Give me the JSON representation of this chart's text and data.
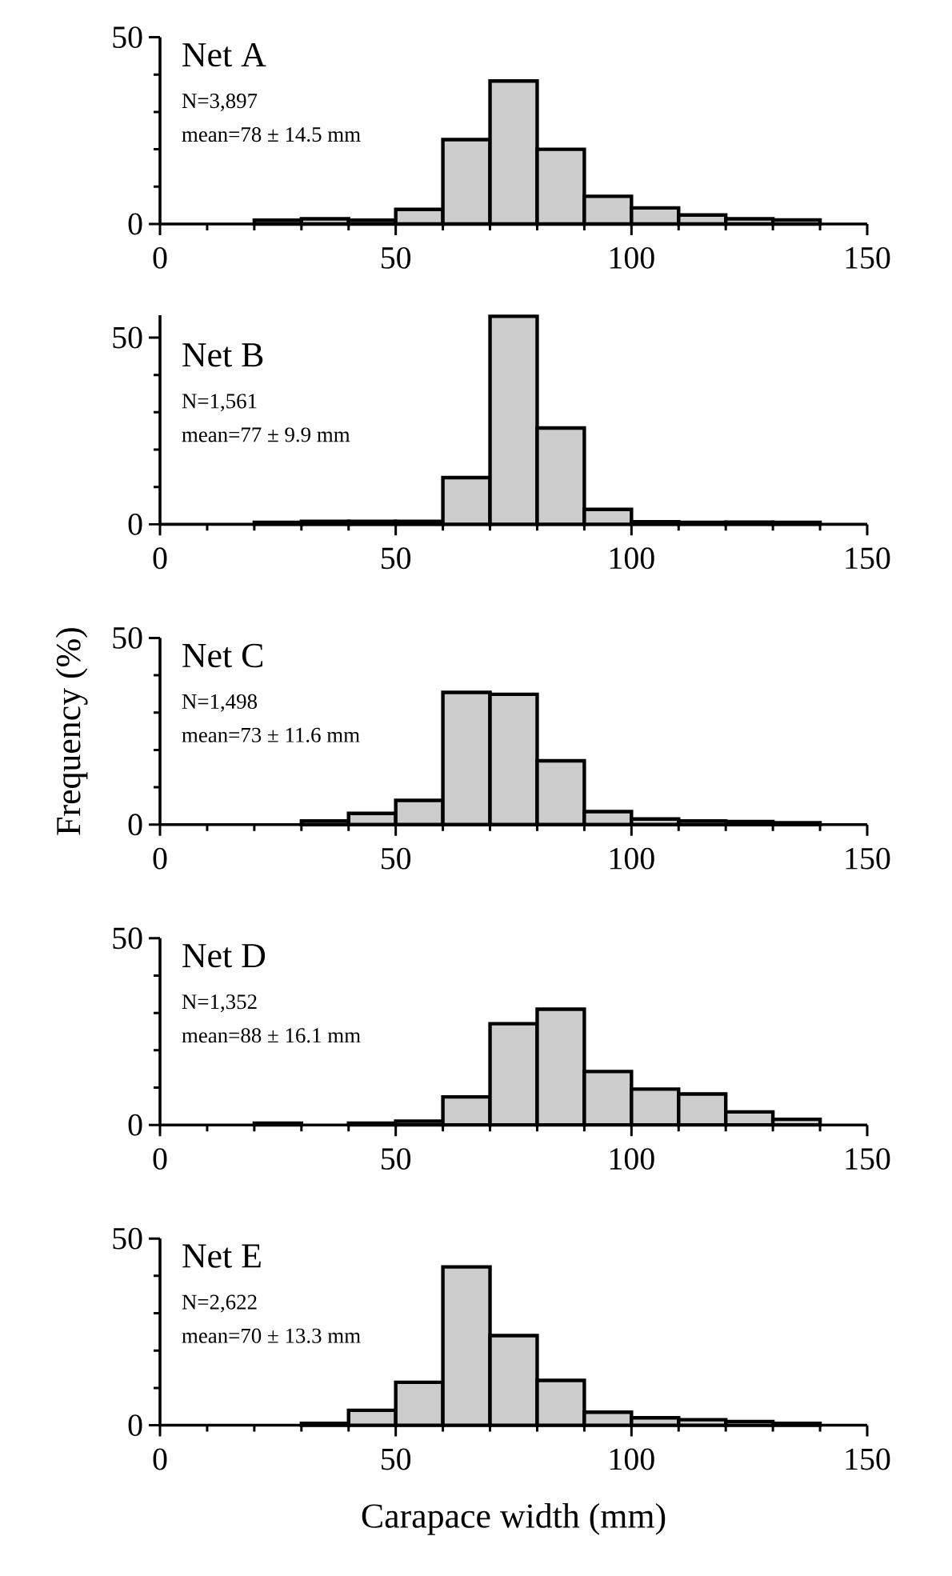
{
  "chart_data": [
    {
      "type": "histogram",
      "bins": [
        20,
        30,
        40,
        50,
        60,
        70,
        80,
        90,
        100,
        110,
        120,
        130,
        140
      ],
      "values": [
        1,
        1.4,
        1,
        3.9,
        22.6,
        38.3,
        20,
        7.4,
        4.3,
        2.4,
        1.4,
        1.1
      ],
      "color": "#cccccc",
      "xlim": [
        0,
        150
      ],
      "ylim": [
        0,
        50
      ],
      "xticks": [
        0,
        50,
        100,
        150
      ],
      "yticks": [
        0,
        50
      ],
      "annotations": [
        "Net A",
        "N=3,897",
        "mean=78 ± 14.5 mm"
      ]
    },
    {
      "type": "histogram",
      "bins": [
        20,
        30,
        40,
        50,
        60,
        70,
        80,
        90,
        100,
        110,
        120,
        130,
        140
      ],
      "values": [
        0.5,
        0.8,
        0.8,
        0.8,
        12.5,
        55.7,
        25.8,
        4,
        0.7,
        0.5,
        0.6,
        0.5
      ],
      "color": "#cccccc",
      "xlim": [
        0,
        150
      ],
      "ylim": [
        0,
        56
      ],
      "xticks": [
        0,
        50,
        100,
        150
      ],
      "yticks": [
        0,
        50
      ],
      "annotations": [
        "Net B",
        "N=1,561",
        "mean=77 ± 9.9 mm"
      ]
    },
    {
      "type": "histogram",
      "bins": [
        30,
        40,
        50,
        60,
        70,
        80,
        90,
        100,
        110,
        120,
        130,
        140
      ],
      "values": [
        1,
        3,
        6.5,
        35.4,
        34.9,
        17.1,
        3.5,
        1.5,
        1,
        0.8,
        0.5
      ],
      "color": "#cccccc",
      "xlim": [
        0,
        150
      ],
      "ylim": [
        0,
        50
      ],
      "xticks": [
        0,
        50,
        100,
        150
      ],
      "yticks": [
        0,
        50
      ],
      "ylabel": "Frequency (%)",
      "annotations": [
        "Net C",
        "N=1,498",
        "mean=73 ± 11.6 mm"
      ]
    },
    {
      "type": "histogram",
      "bins": [
        20,
        30,
        40,
        50,
        60,
        70,
        80,
        90,
        100,
        110,
        120,
        130,
        140
      ],
      "values": [
        0.5,
        null,
        0.5,
        1,
        7.5,
        27.1,
        31,
        14.3,
        9.6,
        8.3,
        3.5,
        1.5
      ],
      "color": "#cccccc",
      "xlim": [
        0,
        150
      ],
      "ylim": [
        0,
        50
      ],
      "xticks": [
        0,
        50,
        100,
        150
      ],
      "yticks": [
        0,
        50
      ],
      "annotations": [
        "Net D",
        "N=1,352",
        "mean=88 ± 16.1 mm"
      ]
    },
    {
      "type": "histogram",
      "bins": [
        30,
        40,
        50,
        60,
        70,
        80,
        90,
        100,
        110,
        120,
        130,
        140
      ],
      "values": [
        0.5,
        4,
        11.5,
        42.4,
        24,
        12,
        3.5,
        2,
        1.5,
        1,
        0.5
      ],
      "color": "#cccccc",
      "xlim": [
        0,
        150
      ],
      "ylim": [
        0,
        50
      ],
      "xticks": [
        0,
        50,
        100,
        150
      ],
      "yticks": [
        0,
        50
      ],
      "xlabel": "Carapace width (mm)",
      "annotations": [
        "Net E",
        "N=2,622",
        "mean=70 ± 13.3 mm"
      ]
    }
  ]
}
